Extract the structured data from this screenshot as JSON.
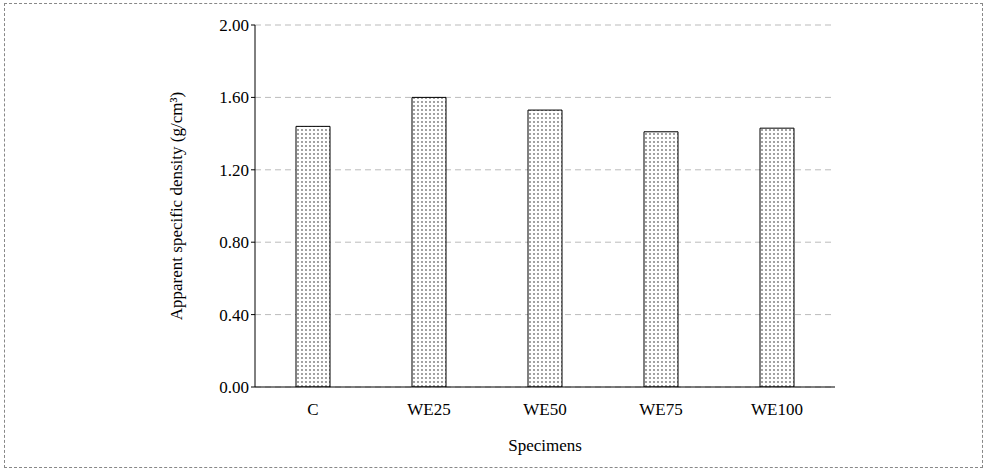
{
  "chart_data": {
    "type": "bar",
    "categories": [
      "C",
      "WE25",
      "WE50",
      "WE75",
      "WE100"
    ],
    "values": [
      1.44,
      1.6,
      1.53,
      1.41,
      1.43
    ],
    "color": "#000000",
    "ylim": [
      0,
      2
    ],
    "yticks": [
      {
        "value": 0,
        "label": "0.00"
      },
      {
        "value": 0.4,
        "label": "0.40"
      },
      {
        "value": 0.8,
        "label": "0.80"
      },
      {
        "value": 1.2,
        "label": "1.20"
      },
      {
        "value": 1.6,
        "label": "1.60"
      },
      {
        "value": 2,
        "label": "2.00"
      }
    ],
    "x_label": "Specimens",
    "y_label": "Apparent specific density (g/cm³)",
    "grid": true
  }
}
